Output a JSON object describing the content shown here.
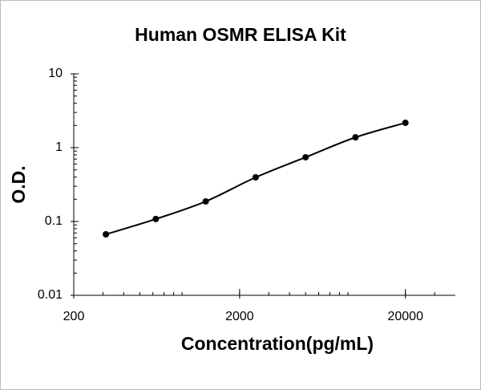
{
  "chart_data": {
    "type": "scatter",
    "title": "Human OSMR ELISA Kit",
    "x_label": "Concentration(pg/mL)",
    "y_label": "O.D.",
    "x": [
      312.5,
      625,
      1250,
      2500,
      5000,
      10000,
      20000
    ],
    "values": [
      0.067,
      0.108,
      0.187,
      0.396,
      0.741,
      1.38,
      2.17
    ],
    "color": "#000000",
    "x_log": true,
    "y_log": true,
    "xlim": [
      200,
      40000
    ],
    "ylim": [
      0.01,
      10
    ],
    "xticks": [
      200,
      2000,
      20000
    ],
    "yticks": [
      0.01,
      0.1,
      1,
      10
    ]
  }
}
